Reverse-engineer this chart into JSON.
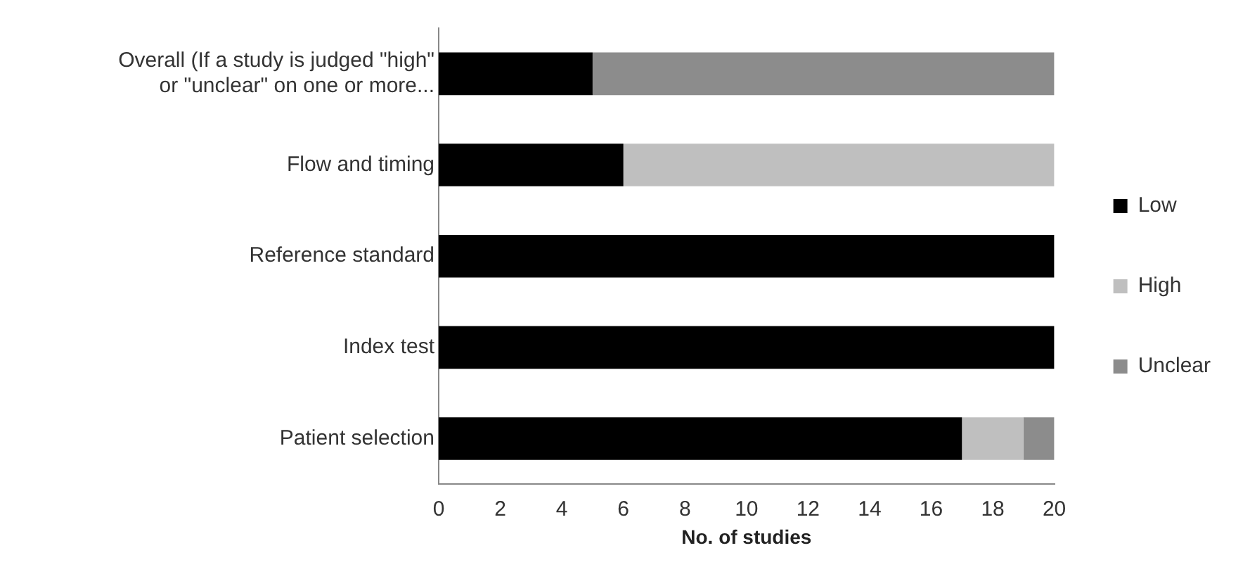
{
  "chart_data": {
    "type": "bar",
    "orientation": "horizontal",
    "stacked": true,
    "xlabel": "No. of studies",
    "categories": [
      "Overall (If a study is judged \"high\" or \"unclear\" on one or more...",
      "Flow and timing",
      "Reference standard",
      "Index test",
      "Patient selection"
    ],
    "series": [
      {
        "name": "Low",
        "color": "#000000",
        "values": [
          5,
          6,
          20,
          20,
          17
        ]
      },
      {
        "name": "High",
        "color": "#bfbfbf",
        "values": [
          0,
          14,
          0,
          0,
          2
        ]
      },
      {
        "name": "Unclear",
        "color": "#8c8c8c",
        "values": [
          15,
          0,
          0,
          0,
          1
        ]
      }
    ],
    "xlim": [
      0,
      20
    ],
    "xticks": [
      0,
      2,
      4,
      6,
      8,
      10,
      12,
      14,
      16,
      18,
      20
    ],
    "grid": false,
    "legend": "right"
  }
}
